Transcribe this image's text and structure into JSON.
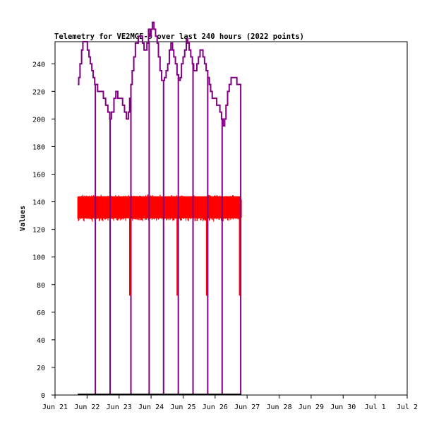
{
  "chart_data": {
    "type": "line",
    "title": "Telemetry for VE2MGE-9 over last 240 hours (2022 points)",
    "xlabel": "",
    "ylabel": "Values",
    "xlim": [
      0,
      11
    ],
    "ylim": [
      0,
      256
    ],
    "x_ticks": [
      "Jun 21",
      "Jun 22",
      "Jun 23",
      "Jun 24",
      "Jun 25",
      "Jun 26",
      "Jun 27",
      "Jun 28",
      "Jun 29",
      "Jun 30",
      "Jul 1",
      "Jul 2"
    ],
    "y_ticks": [
      0,
      20,
      40,
      60,
      80,
      100,
      120,
      140,
      160,
      180,
      200,
      220,
      240
    ],
    "grid": false,
    "legend": "none",
    "colors": {
      "upper_series": "#800080",
      "band_series": "#ff0000",
      "baseline_series": "#000000"
    },
    "series": [
      {
        "color": "#800080",
        "points": [
          [
            0.71,
            225
          ],
          [
            0.74,
            230
          ],
          [
            0.78,
            240
          ],
          [
            0.83,
            250
          ],
          [
            0.87,
            256
          ],
          [
            0.92,
            256
          ],
          [
            0.97,
            256
          ],
          [
            1.01,
            250
          ],
          [
            1.06,
            245
          ],
          [
            1.1,
            240
          ],
          [
            1.15,
            235
          ],
          [
            1.19,
            230
          ],
          [
            1.24,
            225
          ],
          [
            1.33,
            220
          ],
          [
            1.38,
            220
          ],
          [
            1.45,
            220
          ],
          [
            1.51,
            215
          ],
          [
            1.58,
            210
          ],
          [
            1.65,
            205
          ],
          [
            1.71,
            200
          ],
          [
            1.76,
            205
          ],
          [
            1.84,
            215
          ],
          [
            1.9,
            220
          ],
          [
            1.96,
            215
          ],
          [
            2.06,
            215
          ],
          [
            2.11,
            210
          ],
          [
            2.17,
            205
          ],
          [
            2.23,
            200
          ],
          [
            2.29,
            205
          ],
          [
            2.33,
            215
          ],
          [
            2.37,
            225
          ],
          [
            2.41,
            235
          ],
          [
            2.46,
            245
          ],
          [
            2.51,
            255
          ],
          [
            2.56,
            255
          ],
          [
            2.6,
            260
          ],
          [
            2.68,
            260
          ],
          [
            2.73,
            255
          ],
          [
            2.78,
            250
          ],
          [
            2.83,
            250
          ],
          [
            2.87,
            255
          ],
          [
            2.92,
            265
          ],
          [
            2.97,
            260
          ],
          [
            3.0,
            265
          ],
          [
            3.04,
            270
          ],
          [
            3.09,
            265
          ],
          [
            3.14,
            260
          ],
          [
            3.19,
            255
          ],
          [
            3.23,
            245
          ],
          [
            3.28,
            235
          ],
          [
            3.33,
            228
          ],
          [
            3.37,
            228
          ],
          [
            3.42,
            230
          ],
          [
            3.47,
            235
          ],
          [
            3.52,
            240
          ],
          [
            3.57,
            250
          ],
          [
            3.62,
            255
          ],
          [
            3.67,
            250
          ],
          [
            3.71,
            245
          ],
          [
            3.76,
            240
          ],
          [
            3.81,
            232
          ],
          [
            3.86,
            228
          ],
          [
            3.91,
            230
          ],
          [
            3.95,
            240
          ],
          [
            4.0,
            245
          ],
          [
            4.05,
            250
          ],
          [
            4.1,
            258
          ],
          [
            4.14,
            255
          ],
          [
            4.19,
            250
          ],
          [
            4.24,
            245
          ],
          [
            4.29,
            240
          ],
          [
            4.33,
            235
          ],
          [
            4.38,
            235
          ],
          [
            4.43,
            240
          ],
          [
            4.48,
            245
          ],
          [
            4.53,
            250
          ],
          [
            4.58,
            250
          ],
          [
            4.62,
            245
          ],
          [
            4.67,
            240
          ],
          [
            4.72,
            235
          ],
          [
            4.77,
            230
          ],
          [
            4.82,
            225
          ],
          [
            4.86,
            220
          ],
          [
            4.91,
            215
          ],
          [
            4.96,
            215
          ],
          [
            5.01,
            215
          ],
          [
            5.05,
            210
          ],
          [
            5.1,
            210
          ],
          [
            5.15,
            205
          ],
          [
            5.2,
            200
          ],
          [
            5.25,
            195
          ],
          [
            5.3,
            200
          ],
          [
            5.34,
            210
          ],
          [
            5.39,
            220
          ],
          [
            5.44,
            225
          ],
          [
            5.5,
            230
          ],
          [
            5.56,
            230
          ],
          [
            5.62,
            230
          ],
          [
            5.68,
            225
          ],
          [
            5.73,
            225
          ],
          [
            5.78,
            225
          ],
          [
            5.82,
            225
          ]
        ]
      },
      {
        "color": "#ff0000",
        "min": 128,
        "max": 144,
        "x_range": [
          0.71,
          5.82
        ]
      },
      {
        "color": "#000000",
        "value": 0,
        "x_range": [
          0.71,
          5.82
        ]
      }
    ],
    "drops": [
      {
        "x": 1.26,
        "color": "#800080"
      },
      {
        "x": 1.72,
        "color": "#800080"
      },
      {
        "x": 2.37,
        "color": "#800080",
        "band_drop": 72
      },
      {
        "x": 2.94,
        "color": "#800080"
      },
      {
        "x": 3.39,
        "color": "#800080"
      },
      {
        "x": 3.85,
        "color": "#800080",
        "band_drop": 72
      },
      {
        "x": 4.31,
        "color": "#800080"
      },
      {
        "x": 4.77,
        "color": "#800080",
        "band_drop": 72
      },
      {
        "x": 5.22,
        "color": "#800080"
      },
      {
        "x": 5.8,
        "color": "#800080",
        "band_drop": 72
      }
    ]
  }
}
